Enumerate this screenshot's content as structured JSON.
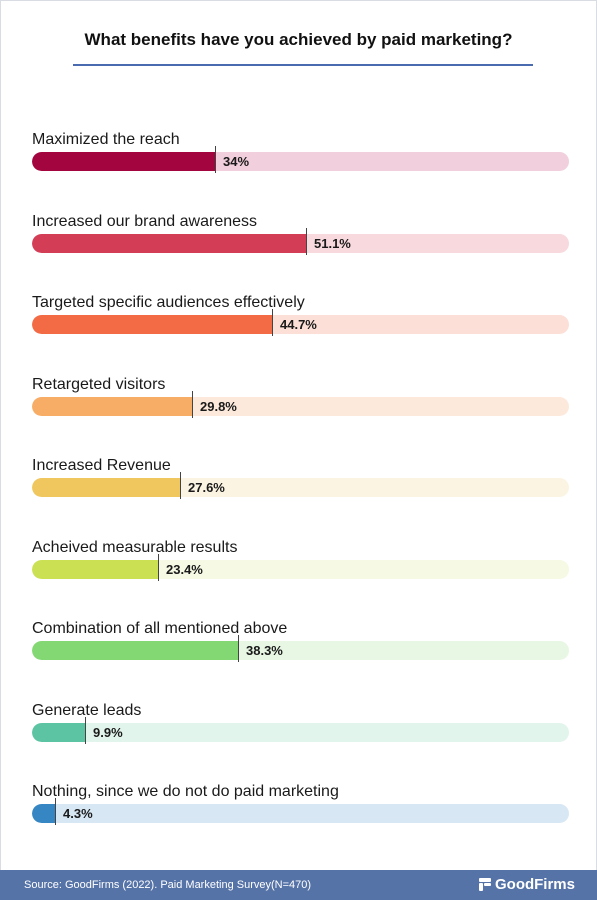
{
  "chart_data": {
    "type": "bar",
    "orientation": "horizontal",
    "title": "What benefits have you achieved by paid marketing?",
    "xlim": [
      0,
      100
    ],
    "grid": false,
    "categories": [
      "Maximized the reach",
      "Increased our brand awareness",
      "Targeted specific audiences effectively",
      "Retargeted visitors",
      "Increased Revenue",
      "Acheived measurable results",
      "Combination of all mentioned above",
      "Generate leads",
      "Nothing, since we do not do paid marketing"
    ],
    "values": [
      34,
      51.1,
      44.7,
      29.8,
      27.6,
      23.4,
      38.3,
      9.9,
      4.3
    ],
    "value_labels": [
      "34%",
      "51.1%",
      "44.7%",
      "29.8%",
      "27.6%",
      "23.4%",
      "38.3%",
      "9.9%",
      "4.3%"
    ],
    "colors": [
      "#a3063f",
      "#d43d56",
      "#f26b45",
      "#f7ad66",
      "#efc75e",
      "#cbe052",
      "#83d873",
      "#5cc4a2",
      "#3686c4"
    ],
    "track_colors": [
      "#f1cfdc",
      "#f7d9de",
      "#fcdfd6",
      "#fde9dc",
      "#fcf4e3",
      "#f6f9e3",
      "#e8f7e4",
      "#e2f5ec",
      "#d7e7f4"
    ]
  },
  "footer": {
    "source": "Source: GoodFirms (2022). Paid Marketing Survey(N=470)",
    "brand": "GoodFirms"
  },
  "colors": {
    "footer_bg": "#5673a8",
    "title_rule": "#4a6bb0"
  }
}
